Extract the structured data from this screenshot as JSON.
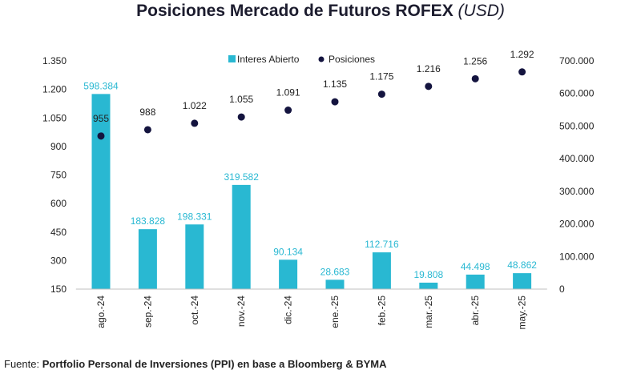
{
  "chart_data": {
    "type": "bar",
    "title": "Posiciones Mercado de Futuros ROFEX",
    "title_unit": "(USD)",
    "categories": [
      "ago.-24",
      "sep.-24",
      "oct.-24",
      "nov.-24",
      "dic.-24",
      "ene.-25",
      "feb.-25",
      "mar.-25",
      "abr.-25",
      "may.-25"
    ],
    "series": [
      {
        "name": "Interes Abierto",
        "type": "bar",
        "axis": "right",
        "color": "#29b8d2",
        "values": [
          598384,
          183828,
          198331,
          319582,
          90134,
          28683,
          112716,
          19808,
          44498,
          48862
        ],
        "labels": [
          "598.384",
          "183.828",
          "198.331",
          "319.582",
          "90.134",
          "28.683",
          "112.716",
          "19.808",
          "44.498",
          "48.862"
        ]
      },
      {
        "name": "Posiciones",
        "type": "scatter",
        "axis": "left",
        "color": "#14143f",
        "values": [
          955,
          988,
          1022,
          1055,
          1091,
          1135,
          1175,
          1216,
          1256,
          1292
        ],
        "labels": [
          "955",
          "988",
          "1.022",
          "1.055",
          "1.091",
          "1.135",
          "1.175",
          "1.216",
          "1.256",
          "1.292"
        ]
      }
    ],
    "left_axis": {
      "ylim": [
        150,
        1350
      ],
      "ticks": [
        150,
        300,
        450,
        600,
        750,
        900,
        1050,
        1200,
        1350
      ],
      "tick_labels": [
        "150",
        "300",
        "450",
        "600",
        "750",
        "900",
        "1.050",
        "1.200",
        "1.350"
      ]
    },
    "right_axis": {
      "ylim": [
        0,
        700000
      ],
      "ticks": [
        0,
        100000,
        200000,
        300000,
        400000,
        500000,
        600000,
        700000
      ],
      "tick_labels": [
        "0",
        "100.000",
        "200.000",
        "300.000",
        "400.000",
        "500.000",
        "600.000",
        "700.000"
      ]
    },
    "legend_position": "top-center",
    "grid": false
  },
  "footer": {
    "prefix": "Fuente: ",
    "source": "Portfolio Personal de Inversiones (PPI) en base a Bloomberg & BYMA"
  }
}
